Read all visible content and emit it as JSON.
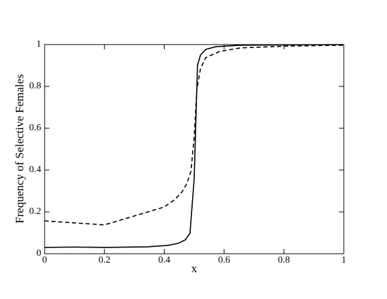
{
  "chart_data": {
    "type": "line",
    "xlabel": "x",
    "ylabel": "Frequency of Selective Females",
    "xlim": [
      0,
      1
    ],
    "ylim": [
      0,
      1
    ],
    "xticks": [
      0,
      0.2,
      0.4,
      0.6,
      0.8,
      1
    ],
    "yticks": [
      0,
      0.2,
      0.4,
      0.6,
      0.8,
      1
    ],
    "series": [
      {
        "color": "#000000",
        "dash": "solid",
        "x": [
          0,
          0.103,
          0.2,
          0.344,
          0.413,
          0.447,
          0.47,
          0.486,
          0.5,
          0.511,
          0.521,
          0.539,
          0.573,
          0.654,
          1
        ],
        "values": [
          0.03,
          0.032,
          0.03,
          0.033,
          0.04,
          0.05,
          0.066,
          0.098,
          0.36,
          0.9,
          0.95,
          0.977,
          0.99,
          0.997,
          1
        ]
      },
      {
        "color": "#000000",
        "dash": "dashed",
        "x": [
          0,
          0.2,
          0.399,
          0.436,
          0.459,
          0.475,
          0.489,
          0.5,
          0.509,
          0.521,
          0.539,
          0.585,
          0.654,
          0.814,
          1
        ],
        "values": [
          0.157,
          0.138,
          0.223,
          0.26,
          0.295,
          0.334,
          0.393,
          0.557,
          0.787,
          0.885,
          0.938,
          0.967,
          0.984,
          0.993,
          0.997
        ]
      }
    ]
  }
}
